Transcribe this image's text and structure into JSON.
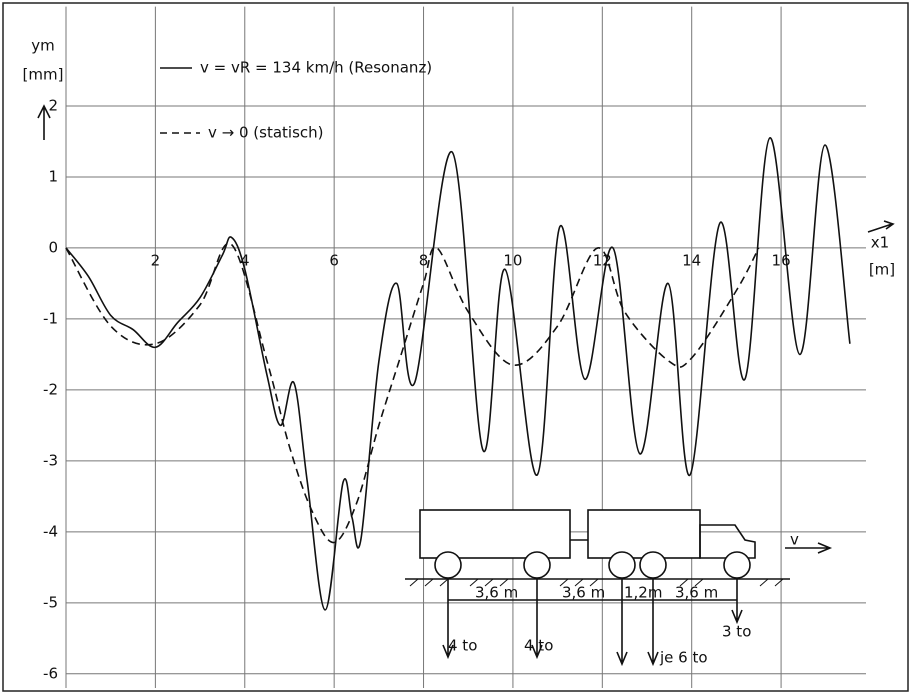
{
  "chart_data": {
    "type": "line",
    "ylabel": "ym",
    "yunit": "[mm]",
    "xlabel": "x1",
    "xunit": "[m]",
    "xlim": [
      0,
      17.9
    ],
    "ylim": [
      -6.2,
      3.4
    ],
    "xticks": [
      2,
      4,
      6,
      8,
      10,
      12,
      14,
      16
    ],
    "yticks": [
      -6,
      -5,
      -4,
      -3,
      -2,
      -1,
      0,
      1,
      2
    ],
    "grid": true,
    "series": [
      {
        "name": "v = vR = 134 km/h (Resonanz)",
        "color": "#111111",
        "dash": false,
        "x": [
          0,
          0.5,
          1,
          1.5,
          2,
          2.5,
          3,
          3.5,
          3.7,
          4,
          4.5,
          4.8,
          5.1,
          5.4,
          5.8,
          6.2,
          6.4,
          6.6,
          7,
          7.4,
          7.8,
          8.64,
          9.33,
          9.82,
          10.54,
          11.05,
          11.61,
          12.24,
          12.84,
          13.47,
          13.96,
          14.63,
          15.19,
          15.75,
          16.42,
          16.98,
          17.54
        ],
        "values": [
          0,
          -0.4,
          -0.95,
          -1.15,
          -1.4,
          -1.05,
          -0.7,
          -0.1,
          0.15,
          -0.3,
          -1.8,
          -2.5,
          -1.9,
          -3.3,
          -5.1,
          -3.3,
          -3.8,
          -4.1,
          -1.6,
          -0.5,
          -1.9,
          1.35,
          -2.85,
          -0.3,
          -3.2,
          0.3,
          -1.85,
          0.0,
          -2.9,
          -0.5,
          -3.2,
          0.35,
          -1.85,
          1.55,
          -1.5,
          1.45,
          -1.35
        ]
      },
      {
        "name": "v → 0 (statisch)",
        "color": "#111111",
        "dash": true,
        "x": [
          0,
          1,
          2,
          3,
          3.7,
          4.5,
          5,
          5.5,
          6,
          6.5,
          7,
          7.5,
          8,
          8.3,
          9,
          10,
          11,
          11.9,
          12.5,
          13.5,
          14,
          15,
          15.5
        ],
        "values": [
          0,
          -1.1,
          -1.35,
          -0.8,
          0.05,
          -1.6,
          -2.8,
          -3.7,
          -4.15,
          -3.6,
          -2.5,
          -1.5,
          -0.5,
          0,
          -0.9,
          -1.65,
          -1.1,
          0,
          -0.9,
          -1.6,
          -1.55,
          -0.6,
          0
        ]
      }
    ],
    "annotations": [
      "3,6 m",
      "3,6 m",
      "1,2m",
      "3,6 m",
      "4 to",
      "4 to",
      "je 6 to",
      "3 to",
      "v"
    ]
  }
}
